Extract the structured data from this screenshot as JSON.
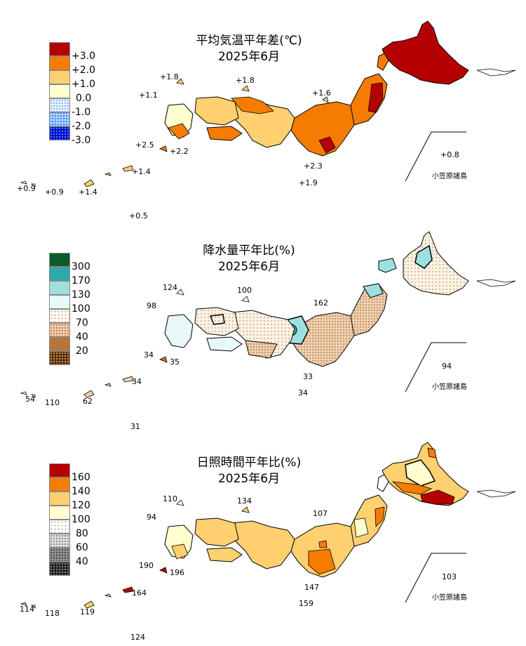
{
  "panels": [
    {
      "id": "temp",
      "title": "平均気温平年差(℃)",
      "subtitle": "2025年6月",
      "legend": [
        {
          "label": "+3.0",
          "color": "#b50000",
          "pattern": "solid"
        },
        {
          "label": "+2.0",
          "color": "#f57c00",
          "pattern": "solid"
        },
        {
          "label": "+1.0",
          "color": "#ffd070",
          "pattern": "solid"
        },
        {
          "label": "0.0",
          "color": "#ffffd0",
          "pattern": "solid"
        },
        {
          "label": "-1.0",
          "color": "#c8e6ff",
          "pattern": "dots"
        },
        {
          "label": "-2.0",
          "color": "#5aa0ff",
          "pattern": "dots"
        },
        {
          "label": "-3.0",
          "color": "#0010cc",
          "pattern": "dots"
        }
      ],
      "colors": {
        "north": "#b50000",
        "east": "#f57c00",
        "west": "#ffd070",
        "tohoku": "#f57c00"
      },
      "values": [
        "+1.8",
        "+1.8",
        "+1.1",
        "+1.6",
        "+2.5",
        "+2.2",
        "+2.3",
        "+1.9",
        "+0.8",
        "+1.4",
        "+1.4",
        "+0.9",
        "+0.9",
        "+0.5"
      ],
      "island_label": "小笠原諸島"
    },
    {
      "id": "precip",
      "title": "降水量平年比(%)",
      "subtitle": "2025年6月",
      "legend": [
        {
          "label": "",
          "color": "#0b5a2a",
          "pattern": "solid"
        },
        {
          "label": "300",
          "color": "#2fa8a8",
          "pattern": "solid"
        },
        {
          "label": "170",
          "color": "#9ee0e0",
          "pattern": "solid"
        },
        {
          "label": "130",
          "color": "#e8f8f8",
          "pattern": "solid"
        },
        {
          "label": "100",
          "color": "#ffffff",
          "pattern": "dots"
        },
        {
          "label": "70",
          "color": "#f0d0b0",
          "pattern": "dots"
        },
        {
          "label": "40",
          "color": "#b8743a",
          "pattern": "dots"
        },
        {
          "label": "20",
          "color": "#5a3008",
          "pattern": "dots"
        }
      ],
      "colors": {
        "north": "#f7ece0",
        "east": "#ead6c2",
        "west": "#fbf3e6",
        "tohoku": "#e8f8f8"
      },
      "values": [
        "124",
        "100",
        "98",
        "162",
        "34",
        "35",
        "33",
        "34",
        "94",
        "34",
        "62",
        "54",
        "110",
        "31"
      ],
      "island_label": "小笠原諸島"
    },
    {
      "id": "sun",
      "title": "日照時間平年比(%)",
      "subtitle": "2025年6月",
      "legend": [
        {
          "label": "160",
          "color": "#b50000",
          "pattern": "solid"
        },
        {
          "label": "140",
          "color": "#f57c00",
          "pattern": "solid"
        },
        {
          "label": "120",
          "color": "#ffd070",
          "pattern": "solid"
        },
        {
          "label": "100",
          "color": "#ffffd0",
          "pattern": "solid"
        },
        {
          "label": "80",
          "color": "#ffffff",
          "pattern": "dots"
        },
        {
          "label": "60",
          "color": "#c0c0c0",
          "pattern": "dots"
        },
        {
          "label": "40",
          "color": "#303030",
          "pattern": "dots"
        }
      ],
      "colors": {
        "north": "#ffd070",
        "east": "#ffd070",
        "west": "#ffd070",
        "tohoku": "#ffd070"
      },
      "values": [
        "110",
        "134",
        "94",
        "107",
        "190",
        "196",
        "147",
        "159",
        "103",
        "164",
        "119",
        "114",
        "118",
        "124"
      ],
      "island_label": "小笠原諸島"
    }
  ]
}
